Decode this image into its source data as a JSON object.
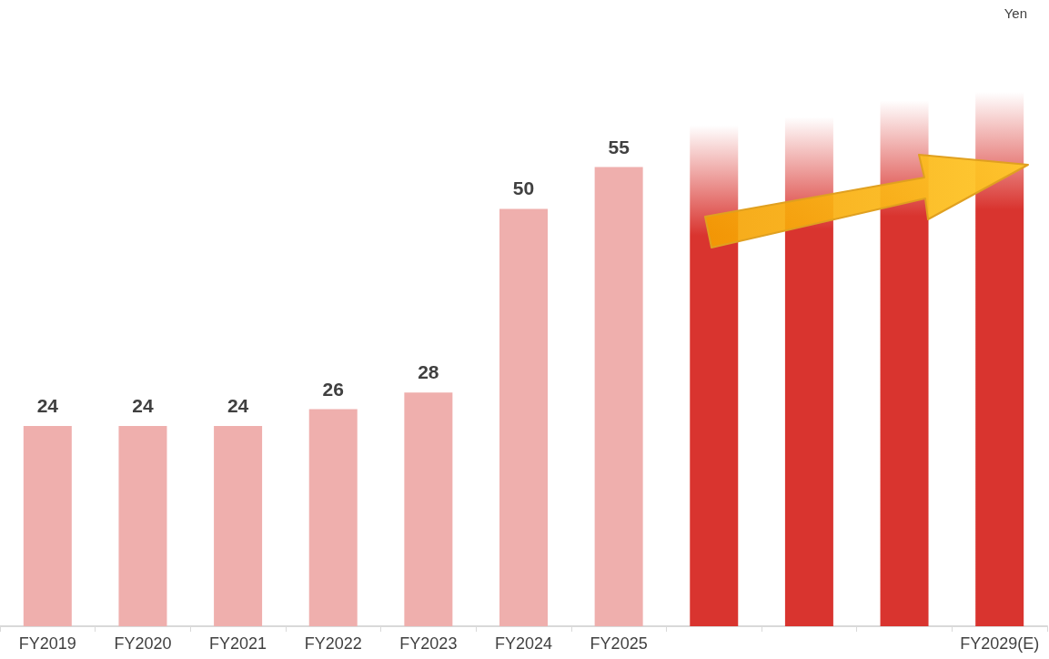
{
  "chart_data": {
    "type": "bar",
    "annotations": [
      "Yen"
    ],
    "categories": [
      "FY2019",
      "FY2020",
      "FY2021",
      "FY2022",
      "FY2023",
      "FY2024",
      "FY2025",
      null,
      null,
      null,
      "FY2029(E)"
    ],
    "values": [
      24,
      24,
      24,
      26,
      28,
      50,
      55,
      60,
      61,
      63,
      64
    ],
    "value_labels": [
      "24",
      "24",
      "24",
      "26",
      "28",
      "50",
      "55",
      null,
      null,
      null,
      null
    ],
    "colors": [
      "#efafad",
      "#efafad",
      "#efafad",
      "#efafad",
      "#efafad",
      "#efafad",
      "#efafad",
      "#d9342f",
      "#d9342f",
      "#d9342f",
      "#d9342f"
    ],
    "orientation": "vertical"
  }
}
